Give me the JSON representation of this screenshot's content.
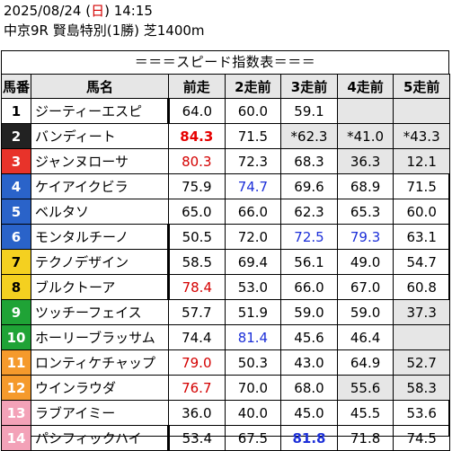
{
  "header": {
    "date_prefix": "2025/08/24 (",
    "weekday": "日",
    "time_suffix": ") 14:15",
    "race": "中京9R 賢島特別(1勝) 芝1400m"
  },
  "table_title": "＝＝＝スピード指数表＝＝＝",
  "columns": [
    "馬番",
    "馬名",
    "前走",
    "2走前",
    "3走前",
    "4走前",
    "5走前"
  ],
  "colors": {
    "frame_1": "#ffffff",
    "frame_2": "#222222",
    "frame_3": "#e8332a",
    "frame_4": "#2a63c9",
    "frame_5": "#f4d020",
    "frame_6": "#1fa336",
    "frame_7": "#f59a2c",
    "frame_8": "#f3a2b8",
    "gray_cell": "#e6e6e6",
    "red_value": "#d40000",
    "blue_value": "#1c2fd8"
  },
  "rows": [
    {
      "num": "1",
      "name": "ジーティーエスピ",
      "values": [
        "64.0",
        "60.0",
        "59.1",
        "",
        ""
      ]
    },
    {
      "num": "2",
      "name": "バンディート",
      "values": [
        "84.3",
        "71.5",
        "*62.3",
        "*41.0",
        "*43.3"
      ]
    },
    {
      "num": "3",
      "name": "ジャンヌローサ",
      "values": [
        "80.3",
        "72.3",
        "68.3",
        "36.3",
        "12.1"
      ]
    },
    {
      "num": "4",
      "name": "ケイアイクビラ",
      "values": [
        "75.9",
        "74.7",
        "69.6",
        "68.9",
        "71.5"
      ]
    },
    {
      "num": "5",
      "name": "ベルタソ",
      "values": [
        "65.0",
        "66.0",
        "62.3",
        "65.3",
        "60.0"
      ]
    },
    {
      "num": "6",
      "name": "モンタルチーノ",
      "values": [
        "50.5",
        "72.0",
        "72.5",
        "79.3",
        "63.1"
      ]
    },
    {
      "num": "7",
      "name": "テクノデザイン",
      "values": [
        "58.5",
        "69.4",
        "56.1",
        "49.0",
        "54.7"
      ]
    },
    {
      "num": "8",
      "name": "ブルクトーア",
      "values": [
        "78.4",
        "53.0",
        "66.0",
        "67.0",
        "60.8"
      ]
    },
    {
      "num": "9",
      "name": "ツッチーフェイス",
      "values": [
        "57.7",
        "51.9",
        "59.0",
        "59.0",
        "37.3"
      ]
    },
    {
      "num": "10",
      "name": "ホーリーブラッサム",
      "values": [
        "74.4",
        "81.4",
        "45.6",
        "46.4",
        ""
      ]
    },
    {
      "num": "11",
      "name": "ロンティケチャップ",
      "values": [
        "79.0",
        "50.3",
        "43.0",
        "64.9",
        "52.7"
      ]
    },
    {
      "num": "12",
      "name": "ウインラウダ",
      "values": [
        "76.7",
        "70.0",
        "68.0",
        "55.6",
        "58.3"
      ]
    },
    {
      "num": "13",
      "name": "ラブアイミー",
      "values": [
        "36.0",
        "40.0",
        "45.0",
        "45.5",
        "53.6"
      ]
    },
    {
      "num": "14",
      "name": "パシフィックハイ",
      "values": [
        "53.4",
        "67.5",
        "81.8",
        "71.8",
        "74.5"
      ]
    }
  ]
}
